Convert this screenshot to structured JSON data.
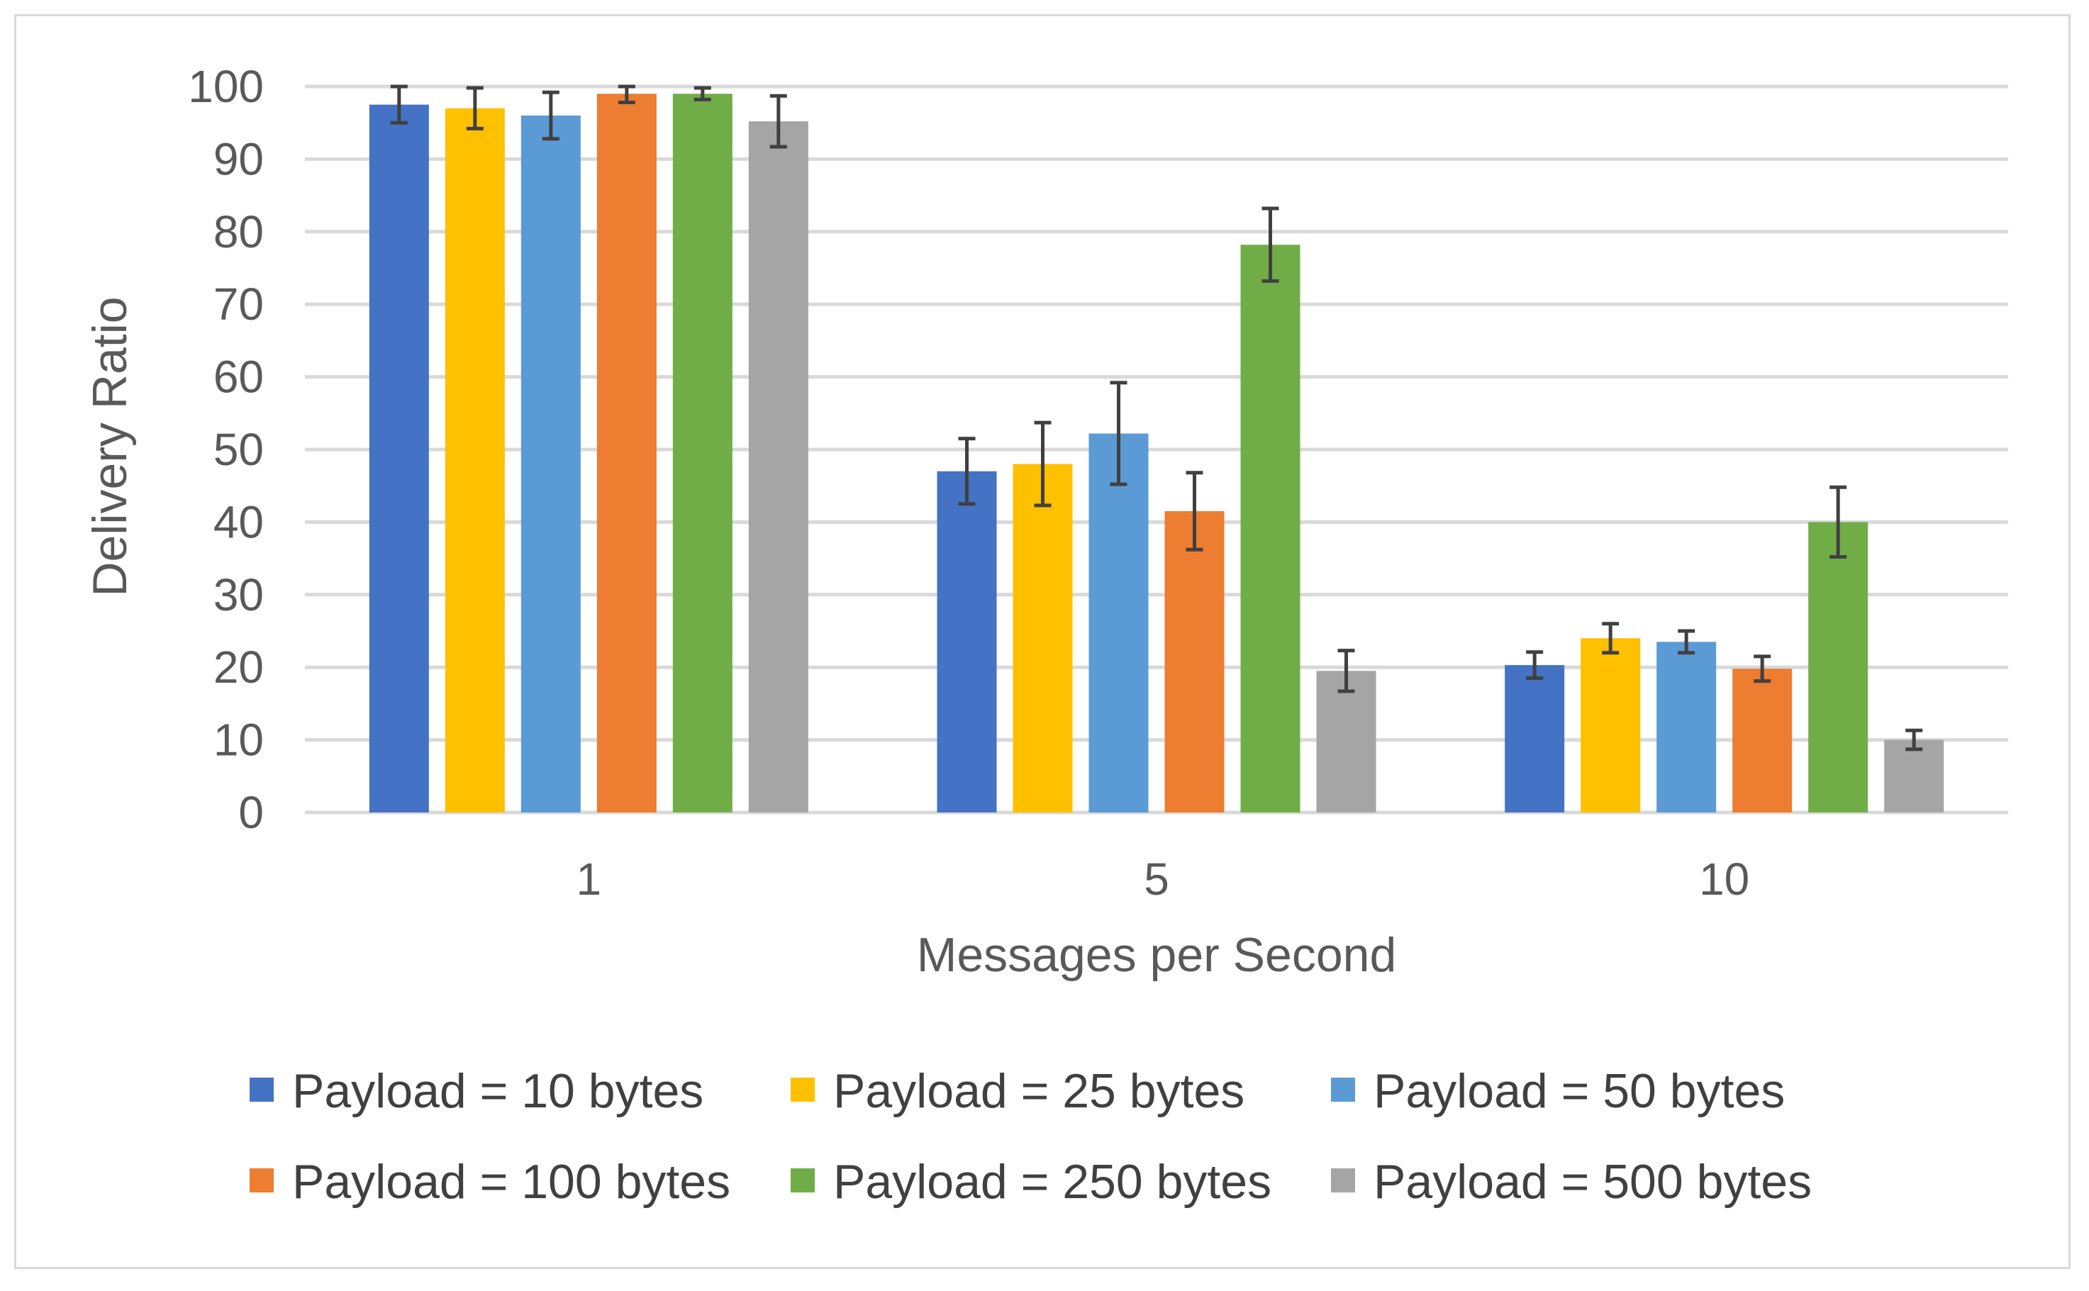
{
  "chart_data": {
    "type": "bar",
    "title": "",
    "xlabel": "Messages per Second",
    "ylabel": "Delivery Ratio",
    "ylim": [
      0,
      100
    ],
    "yticks": [
      0,
      10,
      20,
      30,
      40,
      50,
      60,
      70,
      80,
      90,
      100
    ],
    "grid": true,
    "legend_position": "bottom",
    "categories": [
      "1",
      "5",
      "10"
    ],
    "series": [
      {
        "name": "Payload = 10 bytes",
        "color": "#4472C4",
        "values": [
          97.5,
          47,
          20.3
        ],
        "errors": [
          2.5,
          4.5,
          1.8
        ]
      },
      {
        "name": "Payload = 25 bytes",
        "color": "#FFC000",
        "values": [
          97,
          48,
          24
        ],
        "errors": [
          2.8,
          5.7,
          2
        ]
      },
      {
        "name": "Payload = 50 bytes",
        "color": "#5B9BD5",
        "values": [
          96,
          52.2,
          23.5
        ],
        "errors": [
          3.2,
          7,
          1.5
        ]
      },
      {
        "name": "Payload = 100 bytes",
        "color": "#ED7D31",
        "values": [
          99,
          41.5,
          19.8
        ],
        "errors": [
          1.2,
          5.3,
          1.7
        ]
      },
      {
        "name": "Payload = 250 bytes",
        "color": "#70AD47",
        "values": [
          99,
          78.2,
          40
        ],
        "errors": [
          0.8,
          5,
          4.8
        ]
      },
      {
        "name": "Payload = 500 bytes",
        "color": "#A5A5A5",
        "values": [
          95.2,
          19.5,
          10
        ],
        "errors": [
          3.5,
          2.8,
          1.3
        ]
      }
    ]
  }
}
